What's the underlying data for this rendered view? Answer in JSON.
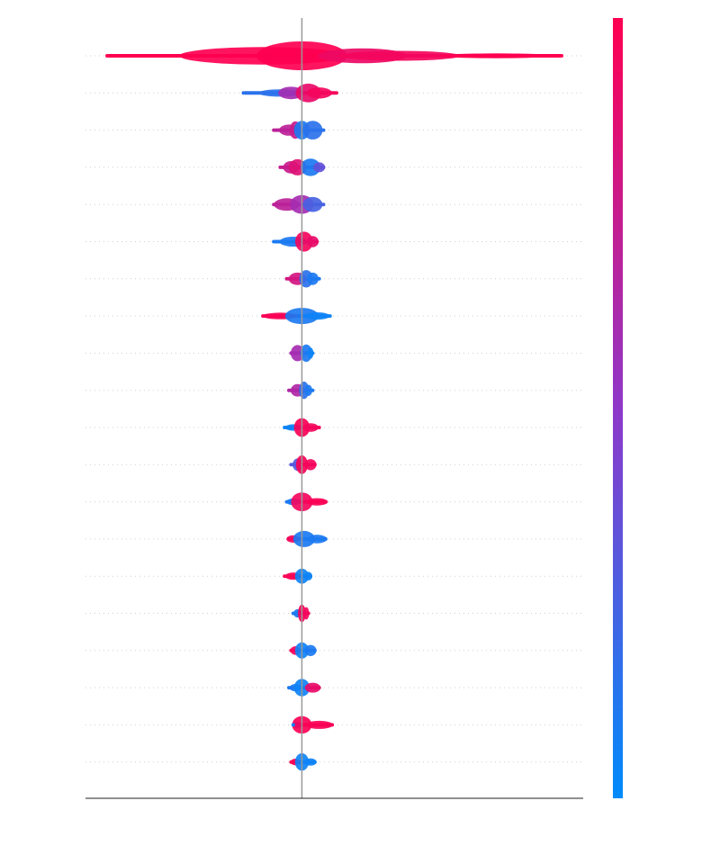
{
  "chart_data": {
    "type": "violin",
    "title": "",
    "xlabel": "",
    "ylabel": "",
    "grid": true,
    "zero_line": 0,
    "xlim": [
      -1.0,
      1.3
    ],
    "colorbar": {
      "label": "",
      "colors": [
        "#008bfb",
        "#8e38c9",
        "#ff0051"
      ]
    },
    "features": [
      {
        "range": [
          -0.9,
          1.2
        ],
        "blobs": [
          [
            -0.18,
            0.55,
            1.0
          ],
          [
            0.0,
            1.0,
            1.0
          ],
          [
            0.28,
            0.45,
            0.92
          ],
          [
            0.45,
            0.25,
            0.95
          ],
          [
            0.9,
            0.05,
            1.0
          ]
        ]
      },
      {
        "range": [
          -0.27,
          0.16
        ],
        "blobs": [
          [
            -0.1,
            0.15,
            0.15
          ],
          [
            -0.05,
            0.35,
            0.6
          ],
          [
            0.03,
            0.6,
            0.9
          ],
          [
            0.08,
            0.3,
            0.95
          ]
        ]
      },
      {
        "range": [
          -0.13,
          0.1
        ],
        "blobs": [
          [
            -0.06,
            0.3,
            0.7
          ],
          [
            -0.03,
            0.55,
            0.75
          ],
          [
            0.0,
            0.6,
            0.1
          ],
          [
            0.05,
            0.6,
            0.15
          ]
        ]
      },
      {
        "range": [
          -0.1,
          0.1
        ],
        "blobs": [
          [
            -0.05,
            0.35,
            0.75
          ],
          [
            -0.02,
            0.5,
            0.85
          ],
          [
            0.04,
            0.55,
            0.1
          ],
          [
            0.08,
            0.25,
            0.35
          ]
        ]
      },
      {
        "range": [
          -0.13,
          0.1
        ],
        "blobs": [
          [
            -0.07,
            0.35,
            0.7
          ],
          [
            0.0,
            0.6,
            0.6
          ],
          [
            0.05,
            0.45,
            0.25
          ]
        ]
      },
      {
        "range": [
          -0.13,
          0.07
        ],
        "blobs": [
          [
            -0.04,
            0.25,
            0.1
          ],
          [
            0.01,
            0.65,
            0.95
          ],
          [
            0.05,
            0.3,
            0.9
          ]
        ]
      },
      {
        "range": [
          -0.07,
          0.08
        ],
        "blobs": [
          [
            -0.02,
            0.35,
            0.8
          ],
          [
            0.02,
            0.55,
            0.15
          ],
          [
            0.05,
            0.35,
            0.1
          ]
        ]
      },
      {
        "range": [
          -0.18,
          0.13
        ],
        "blobs": [
          [
            -0.1,
            0.12,
            0.98
          ],
          [
            0.0,
            0.5,
            0.1
          ],
          [
            0.07,
            0.15,
            0.05
          ]
        ]
      },
      {
        "range": [
          -0.05,
          0.05
        ],
        "blobs": [
          [
            -0.02,
            0.5,
            0.6
          ],
          [
            0.02,
            0.55,
            0.1
          ],
          [
            0.04,
            0.3,
            0.05
          ]
        ]
      },
      {
        "range": [
          -0.06,
          0.05
        ],
        "blobs": [
          [
            -0.02,
            0.35,
            0.65
          ],
          [
            0.01,
            0.55,
            0.15
          ],
          [
            0.03,
            0.3,
            0.1
          ]
        ]
      },
      {
        "range": [
          -0.08,
          0.08
        ],
        "blobs": [
          [
            -0.04,
            0.12,
            0.05
          ],
          [
            0.0,
            0.6,
            0.98
          ],
          [
            0.04,
            0.2,
            0.95
          ]
        ]
      },
      {
        "range": [
          -0.05,
          0.06
        ],
        "blobs": [
          [
            -0.02,
            0.35,
            0.3
          ],
          [
            0.0,
            0.6,
            0.98
          ],
          [
            0.04,
            0.3,
            0.95
          ]
        ]
      },
      {
        "range": [
          -0.07,
          0.11
        ],
        "blobs": [
          [
            -0.04,
            0.12,
            0.1
          ],
          [
            0.0,
            0.6,
            0.95
          ],
          [
            0.07,
            0.15,
            0.98
          ]
        ]
      },
      {
        "range": [
          -0.06,
          0.11
        ],
        "blobs": [
          [
            -0.04,
            0.15,
            0.95
          ],
          [
            0.01,
            0.5,
            0.1
          ],
          [
            0.07,
            0.2,
            0.1
          ]
        ]
      },
      {
        "range": [
          -0.08,
          0.04
        ],
        "blobs": [
          [
            -0.04,
            0.15,
            0.98
          ],
          [
            0.0,
            0.45,
            0.05
          ],
          [
            0.03,
            0.2,
            0.05
          ]
        ]
      },
      {
        "range": [
          -0.04,
          0.03
        ],
        "blobs": [
          [
            -0.02,
            0.2,
            0.1
          ],
          [
            0.0,
            0.55,
            0.98
          ],
          [
            0.02,
            0.35,
            0.95
          ]
        ]
      },
      {
        "range": [
          -0.05,
          0.06
        ],
        "blobs": [
          [
            -0.03,
            0.2,
            0.95
          ],
          [
            0.0,
            0.5,
            0.05
          ],
          [
            0.04,
            0.3,
            0.1
          ]
        ]
      },
      {
        "range": [
          -0.06,
          0.08
        ],
        "blobs": [
          [
            -0.03,
            0.15,
            0.1
          ],
          [
            0.0,
            0.55,
            0.05
          ],
          [
            0.05,
            0.25,
            0.9
          ]
        ]
      },
      {
        "range": [
          -0.04,
          0.14
        ],
        "blobs": [
          [
            -0.02,
            0.12,
            0.05
          ],
          [
            0.0,
            0.55,
            0.98
          ],
          [
            0.08,
            0.18,
            0.98
          ]
        ]
      },
      {
        "range": [
          -0.05,
          0.06
        ],
        "blobs": [
          [
            -0.03,
            0.12,
            0.98
          ],
          [
            0.0,
            0.55,
            0.05
          ],
          [
            0.04,
            0.15,
            0.05
          ]
        ]
      }
    ]
  }
}
